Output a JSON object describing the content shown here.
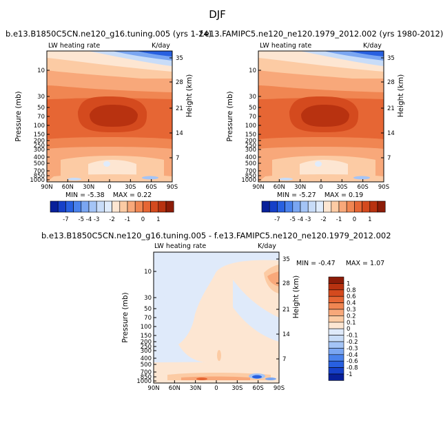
{
  "main_title": "DJF",
  "colors": {
    "blues": [
      "#08209a",
      "#1640c8",
      "#2860e0",
      "#4a82ec",
      "#7aa6f2",
      "#a4c4f6",
      "#c8dcf8",
      "#e0ecfc"
    ],
    "oranges": [
      "#fde6d2",
      "#fccba4",
      "#f8a87a",
      "#f08652",
      "#e66634",
      "#d44a1e",
      "#b83210",
      "#8c1c08"
    ]
  },
  "chart_data": [
    {
      "type": "heatmap",
      "title": "b.e13.B1850C5CN.ne120_g16.tuning.005 (yrs 1-24)",
      "field_label": "LW heating rate",
      "units": "K/day",
      "ylabel": "Pressure (mb)",
      "ylabel_right": "Height (km)",
      "x_ticks": [
        "90N",
        "60N",
        "30N",
        "0",
        "30S",
        "60S",
        "90S"
      ],
      "y_ticks": [
        "10",
        "30",
        "50",
        "70",
        "100",
        "150",
        "200",
        "250",
        "300",
        "400",
        "500",
        "700",
        "850",
        "1000"
      ],
      "y_ticks_right": [
        "35",
        "28",
        "21",
        "14",
        "7"
      ],
      "stats": {
        "min_label": "MIN =",
        "min": "-5.38",
        "max_label": "MAX =",
        "max": "0.22"
      },
      "colorbar_ticks": [
        "-7",
        "-5",
        "-4",
        "-3",
        "-2",
        "-1",
        "0",
        "1"
      ]
    },
    {
      "type": "heatmap",
      "title": "f.e13.FAMIPC5.ne120_ne120.1979_2012.002 (yrs 1980-2012)",
      "field_label": "LW heating rate",
      "units": "K/day",
      "ylabel": "Pressure (mb)",
      "ylabel_right": "Height (km)",
      "x_ticks": [
        "90N",
        "60N",
        "30N",
        "0",
        "30S",
        "60S",
        "90S"
      ],
      "y_ticks": [
        "10",
        "30",
        "50",
        "70",
        "100",
        "150",
        "200",
        "250",
        "300",
        "400",
        "500",
        "700",
        "850",
        "1000"
      ],
      "y_ticks_right": [
        "35",
        "28",
        "21",
        "14",
        "7"
      ],
      "stats": {
        "min_label": "MIN =",
        "min": "-5.27",
        "max_label": "MAX =",
        "max": "0.19"
      },
      "colorbar_ticks": [
        "-7",
        "-5",
        "-4",
        "-3",
        "-2",
        "-1",
        "0",
        "1"
      ]
    },
    {
      "type": "heatmap",
      "title": "b.e13.B1850C5CN.ne120_g16.tuning.005 - f.e13.FAMIPC5.ne120_ne120.1979_2012.002",
      "field_label": "LW heating rate",
      "units": "K/day",
      "ylabel": "Pressure (mb)",
      "ylabel_right": "Height (km)",
      "x_ticks": [
        "90N",
        "60N",
        "30N",
        "0",
        "30S",
        "60S",
        "90S"
      ],
      "y_ticks": [
        "10",
        "30",
        "50",
        "70",
        "100",
        "150",
        "200",
        "250",
        "300",
        "400",
        "500",
        "700",
        "850",
        "1000"
      ],
      "y_ticks_right": [
        "35",
        "28",
        "21",
        "14",
        "7"
      ],
      "stats": {
        "min_label": "MIN =",
        "min": "-0.47",
        "max_label": "MAX =",
        "max": "1.07"
      },
      "colorbar_ticks": [
        "1",
        "0.8",
        "0.6",
        "0.4",
        "0.3",
        "0.2",
        "0.1",
        "0",
        "-0.1",
        "-0.2",
        "-0.3",
        "-0.4",
        "-0.6",
        "-0.8",
        "-1"
      ]
    }
  ]
}
